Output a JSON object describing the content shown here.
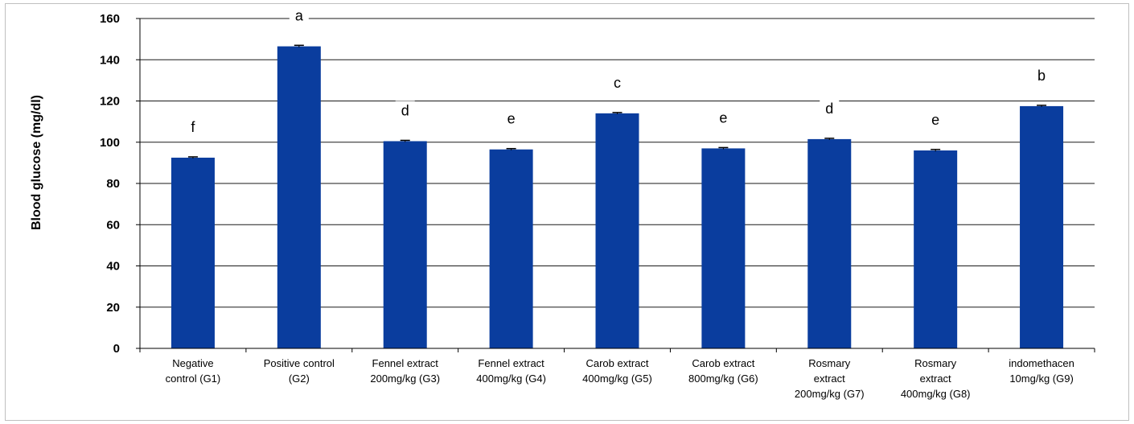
{
  "chart_data": {
    "type": "bar",
    "ylabel": "Blood glucose (mg/dl)",
    "ylim": [
      0,
      160
    ],
    "yticks": [
      0,
      20,
      40,
      60,
      80,
      100,
      120,
      140,
      160
    ],
    "grid": true,
    "bar_color": "#0a3d9e",
    "categories": [
      [
        "Negative",
        "control (G1)"
      ],
      [
        "Positive control",
        "(G2)"
      ],
      [
        "Fennel extract",
        "200mg/kg (G3)"
      ],
      [
        "Fennel extract",
        "400mg/kg (G4)"
      ],
      [
        "Carob extract",
        "400mg/kg (G5)"
      ],
      [
        "Carob extract",
        "800mg/kg (G6)"
      ],
      [
        "Rosmary",
        "extract",
        "200mg/kg (G7)"
      ],
      [
        "Rosmary",
        "extract",
        "400mg/kg (G8)"
      ],
      [
        "indomethacen",
        "10mg/kg (G9)"
      ]
    ],
    "values": [
      92.5,
      146.5,
      100.5,
      96.5,
      114,
      97,
      101.5,
      96,
      117.5
    ],
    "error": [
      0.4,
      0.5,
      0.4,
      0.4,
      0.4,
      0.4,
      0.4,
      0.5,
      0.4
    ],
    "significance_letters": [
      "f",
      "a",
      "d",
      "e",
      "c",
      "e",
      "d",
      "e",
      "b"
    ]
  }
}
